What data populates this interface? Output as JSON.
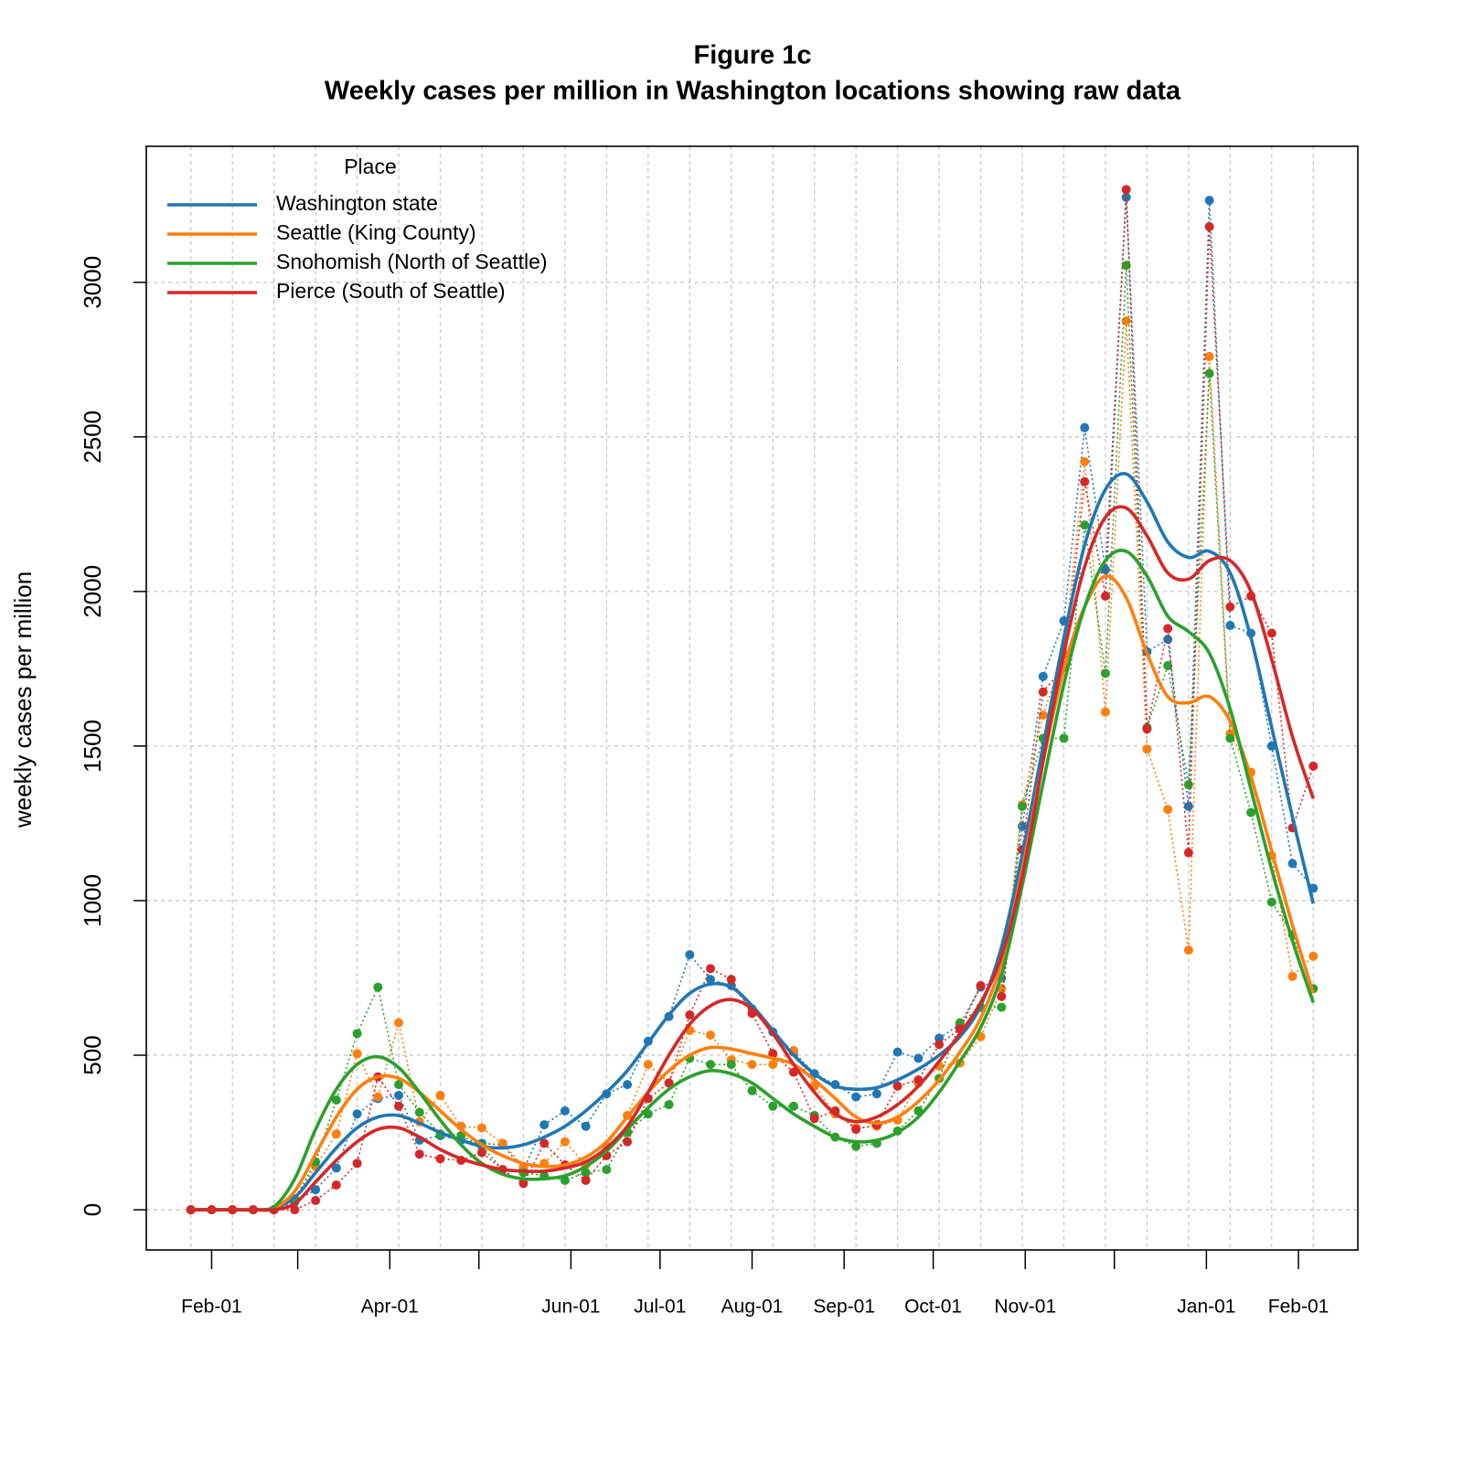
{
  "chart_data": {
    "type": "line",
    "title": "Figure 1c",
    "subtitle": "Weekly cases per million in Washington locations showing raw data",
    "y_label": "weekly cases per million",
    "legend_title": "Place",
    "legend": "topleft",
    "grid": true,
    "x": [
      "Jan-25",
      "Feb-01",
      "Feb-08",
      "Feb-15",
      "Feb-22",
      "Feb-29",
      "Mar-07",
      "Mar-14",
      "Mar-21",
      "Mar-28",
      "Apr-04",
      "Apr-11",
      "Apr-18",
      "Apr-25",
      "May-02",
      "May-09",
      "May-16",
      "May-23",
      "May-30",
      "Jun-06",
      "Jun-13",
      "Jun-20",
      "Jun-27",
      "Jul-04",
      "Jul-11",
      "Jul-18",
      "Jul-25",
      "Aug-01",
      "Aug-08",
      "Aug-15",
      "Aug-22",
      "Aug-29",
      "Sep-05",
      "Sep-12",
      "Sep-19",
      "Sep-26",
      "Oct-03",
      "Oct-10",
      "Oct-17",
      "Oct-24",
      "Oct-31",
      "Nov-07",
      "Nov-14",
      "Nov-21",
      "Nov-28",
      "Dec-05",
      "Dec-12",
      "Dec-19",
      "Dec-26",
      "Jan-02",
      "Jan-09",
      "Jan-16",
      "Jan-23",
      "Jan-30",
      "Feb-06"
    ],
    "xlim": [
      "Jan-10",
      "Feb-21"
    ],
    "xticks": [
      "Feb-01",
      {
        "value": "Mar-01",
        "label": null
      },
      "Apr-01",
      {
        "value": "May-01",
        "label": null
      },
      "Jun-01",
      "Jul-01",
      "Aug-01",
      "Sep-01",
      "Oct-01",
      "Nov-01",
      {
        "value": "Dec-01",
        "label": null
      },
      "Jan-01",
      "Feb-01"
    ],
    "ylim": [
      -130,
      3440
    ],
    "yticks": [
      0,
      500,
      1000,
      1500,
      2000,
      2500,
      3000
    ],
    "series": [
      {
        "name": "Washington state",
        "color": "#1f77b4",
        "values": [
          0,
          0,
          0,
          0,
          0,
          25,
          65,
          135,
          310,
          360,
          370,
          225,
          240,
          225,
          215,
          210,
          130,
          275,
          320,
          270,
          375,
          405,
          545,
          625,
          825,
          745,
          725,
          650,
          575,
          510,
          440,
          405,
          365,
          375,
          510,
          490,
          555,
          600,
          720,
          750,
          1240,
          1725,
          1905,
          2530,
          2070,
          3275,
          1805,
          1845,
          1305,
          3265,
          1890,
          1865,
          1500,
          1120,
          1040
        ],
        "smooth": [
          0,
          0,
          0,
          0,
          5,
          40,
          120,
          200,
          265,
          300,
          305,
          280,
          250,
          225,
          205,
          200,
          210,
          235,
          270,
          320,
          380,
          450,
          540,
          630,
          700,
          730,
          720,
          660,
          580,
          500,
          440,
          400,
          390,
          395,
          420,
          455,
          500,
          560,
          660,
          850,
          1150,
          1500,
          1850,
          2150,
          2330,
          2380,
          2290,
          2160,
          2110,
          2130,
          2060,
          1850,
          1560,
          1270,
          990
        ]
      },
      {
        "name": "Seattle (King County)",
        "color": "#ff7f0e",
        "values": [
          0,
          0,
          0,
          0,
          0,
          35,
          140,
          245,
          505,
          365,
          605,
          285,
          370,
          270,
          265,
          215,
          140,
          150,
          220,
          145,
          205,
          305,
          470,
          410,
          580,
          565,
          485,
          470,
          470,
          515,
          400,
          310,
          265,
          270,
          290,
          410,
          465,
          475,
          560,
          715,
          1310,
          1600,
          1800,
          2420,
          1610,
          2875,
          1490,
          1295,
          840,
          2760,
          1540,
          1415,
          1145,
          755,
          820
        ],
        "smooth": [
          0,
          0,
          0,
          0,
          5,
          60,
          180,
          300,
          390,
          430,
          425,
          380,
          320,
          260,
          210,
          175,
          150,
          140,
          145,
          170,
          220,
          300,
          380,
          450,
          500,
          525,
          520,
          505,
          490,
          470,
          420,
          360,
          300,
          280,
          300,
          350,
          420,
          510,
          620,
          800,
          1100,
          1450,
          1750,
          1950,
          2050,
          1980,
          1800,
          1660,
          1640,
          1660,
          1580,
          1400,
          1160,
          920,
          700
        ]
      },
      {
        "name": "Snohomish (North of Seattle)",
        "color": "#2ca02c",
        "values": [
          0,
          0,
          0,
          0,
          0,
          35,
          155,
          355,
          570,
          720,
          405,
          315,
          245,
          240,
          205,
          130,
          120,
          110,
          95,
          120,
          130,
          250,
          310,
          340,
          490,
          470,
          470,
          385,
          335,
          335,
          305,
          235,
          205,
          215,
          255,
          320,
          425,
          605,
          655,
          655,
          1305,
          1525,
          1525,
          2215,
          1735,
          3055,
          1560,
          1760,
          1375,
          2705,
          1525,
          1285,
          995,
          890,
          715
        ],
        "smooth": [
          0,
          0,
          0,
          0,
          10,
          100,
          260,
          390,
          470,
          495,
          460,
          380,
          290,
          210,
          150,
          115,
          100,
          100,
          110,
          140,
          190,
          260,
          330,
          390,
          430,
          450,
          440,
          410,
          360,
          310,
          270,
          235,
          220,
          225,
          250,
          300,
          380,
          480,
          590,
          760,
          1050,
          1380,
          1700,
          1950,
          2100,
          2130,
          2050,
          1920,
          1870,
          1800,
          1620,
          1360,
          1100,
          870,
          670
        ]
      },
      {
        "name": "Pierce (South of Seattle)",
        "color": "#d62728",
        "values": [
          0,
          0,
          0,
          0,
          0,
          0,
          30,
          80,
          150,
          430,
          335,
          180,
          165,
          160,
          185,
          130,
          85,
          215,
          145,
          95,
          175,
          220,
          360,
          410,
          630,
          780,
          745,
          635,
          505,
          445,
          295,
          320,
          260,
          275,
          400,
          420,
          535,
          585,
          725,
          690,
          1165,
          1675,
          1755,
          2355,
          1985,
          3300,
          1555,
          1880,
          1155,
          3180,
          1950,
          1985,
          1865,
          1235,
          1435
        ],
        "smooth": [
          0,
          0,
          0,
          0,
          0,
          20,
          90,
          160,
          220,
          260,
          265,
          235,
          195,
          165,
          145,
          130,
          125,
          125,
          135,
          155,
          200,
          270,
          380,
          500,
          600,
          660,
          680,
          650,
          570,
          470,
          380,
          310,
          285,
          300,
          340,
          400,
          480,
          570,
          670,
          820,
          1080,
          1450,
          1800,
          2080,
          2240,
          2270,
          2180,
          2060,
          2040,
          2100,
          2100,
          2000,
          1780,
          1530,
          1330
        ]
      }
    ]
  }
}
